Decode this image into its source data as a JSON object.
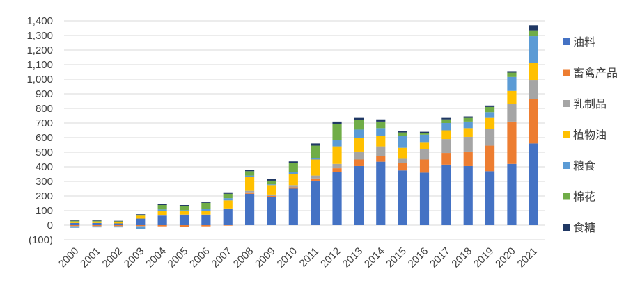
{
  "chart_data": {
    "type": "bar",
    "stacked": true,
    "categories": [
      "2000",
      "2001",
      "2002",
      "2003",
      "2004",
      "2005",
      "2006",
      "2007",
      "2008",
      "2009",
      "2010",
      "2011",
      "2012",
      "2013",
      "2014",
      "2015",
      "2016",
      "2017",
      "2018",
      "2019",
      "2020",
      "2021"
    ],
    "y_tick_labels": [
      "(100)",
      "0",
      "100",
      "200",
      "300",
      "400",
      "500",
      "600",
      "700",
      "800",
      "900",
      "1,000",
      "1,100",
      "1,200",
      "1,300",
      "1,400"
    ],
    "y_tick_values": [
      -100,
      0,
      100,
      200,
      300,
      400,
      500,
      600,
      700,
      800,
      900,
      1000,
      1100,
      1200,
      1300,
      1400
    ],
    "negative_tick_color": "#ff0000",
    "ylim": [
      -100,
      1400
    ],
    "grid": true,
    "legend_position": "right",
    "series": [
      {
        "name": "油料",
        "color": "#4472c4",
        "values": [
          15,
          15,
          12,
          45,
          65,
          70,
          70,
          110,
          215,
          195,
          250,
          305,
          365,
          405,
          435,
          375,
          360,
          415,
          405,
          370,
          420,
          560
        ]
      },
      {
        "name": "畜禽产品",
        "color": "#ed7d31",
        "values": [
          -5,
          -5,
          -5,
          -5,
          -8,
          -10,
          -8,
          -3,
          10,
          5,
          10,
          15,
          25,
          45,
          40,
          50,
          90,
          80,
          100,
          175,
          290,
          305
        ]
      },
      {
        "name": "乳制品",
        "color": "#a5a5a5",
        "values": [
          -5,
          -5,
          -5,
          -5,
          3,
          3,
          3,
          5,
          10,
          10,
          15,
          20,
          30,
          55,
          65,
          30,
          70,
          95,
          100,
          115,
          120,
          130
        ]
      },
      {
        "name": "植物油",
        "color": "#ffc000",
        "values": [
          10,
          10,
          10,
          20,
          30,
          25,
          25,
          55,
          95,
          65,
          75,
          110,
          120,
          95,
          70,
          75,
          45,
          60,
          60,
          75,
          90,
          115
        ]
      },
      {
        "name": "粮食",
        "color": "#5b9bd5",
        "values": [
          -8,
          -5,
          -5,
          -15,
          10,
          5,
          15,
          15,
          10,
          5,
          15,
          10,
          45,
          55,
          55,
          80,
          55,
          50,
          45,
          40,
          95,
          185
        ]
      },
      {
        "name": "棉花",
        "color": "#70ad47",
        "values": [
          5,
          5,
          5,
          5,
          30,
          30,
          40,
          30,
          30,
          25,
          60,
          85,
          110,
          65,
          45,
          25,
          10,
          25,
          25,
          35,
          30,
          40
        ]
      },
      {
        "name": "食糖",
        "color": "#203864",
        "values": [
          3,
          3,
          3,
          5,
          5,
          5,
          5,
          10,
          10,
          10,
          12,
          15,
          15,
          15,
          15,
          10,
          10,
          10,
          10,
          10,
          10,
          35
        ]
      }
    ]
  }
}
